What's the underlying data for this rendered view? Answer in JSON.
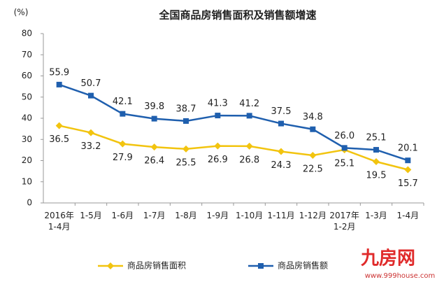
{
  "chart_data": {
    "type": "line",
    "title": "全国商品房销售面积及销售额增速",
    "y_unit": "(%)",
    "categories": [
      "2016年\n1-4月",
      "1-5月",
      "1-6月",
      "1-7月",
      "1-8月",
      "1-9月",
      "1-10月",
      "1-11月",
      "1-12月",
      "2017年\n1-2月",
      "1-3月",
      "1-4月"
    ],
    "series": [
      {
        "name": "商品房销售面积",
        "color": "#f2c40f",
        "marker": "diamond",
        "values": [
          36.5,
          33.2,
          27.9,
          26.4,
          25.5,
          26.9,
          26.8,
          24.3,
          22.5,
          25.1,
          19.5,
          15.7
        ],
        "value_labels": [
          "36.5",
          "33.2",
          "27.9",
          "26.4",
          "25.5",
          "26.9",
          "26.8",
          "24.3",
          "22.5",
          "25.1",
          "19.5",
          "15.7"
        ]
      },
      {
        "name": "商品房销售额",
        "color": "#1f5fae",
        "marker": "square",
        "values": [
          55.9,
          50.7,
          42.1,
          39.8,
          38.7,
          41.3,
          41.2,
          37.5,
          34.8,
          26.0,
          25.1,
          20.1
        ],
        "value_labels": [
          "55.9",
          "50.7",
          "42.1",
          "39.8",
          "38.7",
          "41.3",
          "41.2",
          "37.5",
          "34.8",
          "26.0",
          "25.1",
          "20.1"
        ]
      }
    ],
    "ylim": [
      0,
      80
    ],
    "yticks": [
      0,
      10,
      20,
      30,
      40,
      50,
      60,
      70,
      80
    ],
    "grid": false,
    "legend": "bottom",
    "watermark": {
      "brand": "九房网",
      "url": "www.999house.com"
    }
  }
}
